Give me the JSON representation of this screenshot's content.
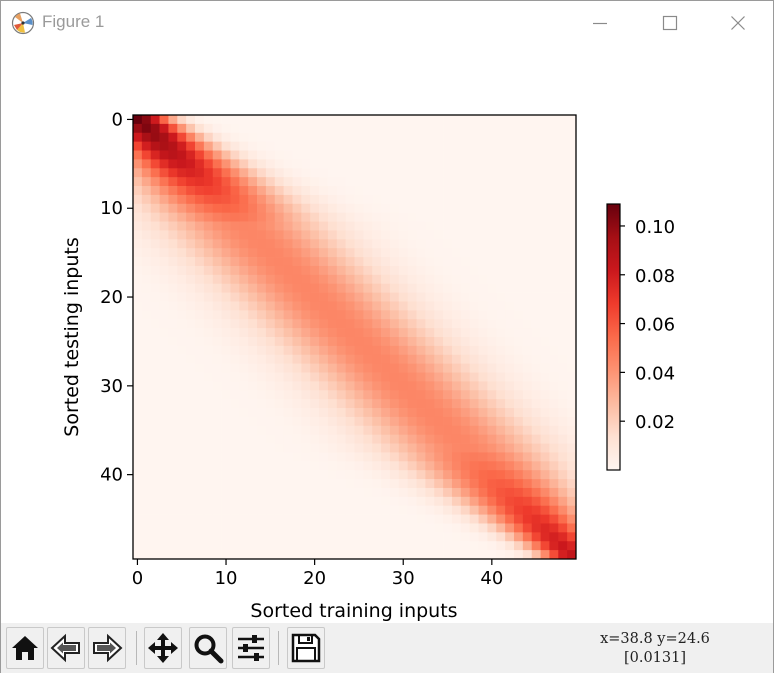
{
  "window": {
    "title": "Figure 1"
  },
  "chart_data": {
    "type": "heatmap",
    "matrix_size": 50,
    "xlabel": "Sorted training inputs",
    "ylabel": "Sorted testing inputs",
    "xticks": [
      0,
      10,
      20,
      30,
      40
    ],
    "yticks": [
      0,
      10,
      20,
      30,
      40
    ],
    "xlim": [
      -0.5,
      49.5
    ],
    "ylim": [
      49.5,
      -0.5
    ],
    "colormap": "Reds",
    "colorbar": {
      "min": 0.0,
      "max": 0.109,
      "ticks": [
        0.02,
        0.04,
        0.06,
        0.08,
        0.1
      ],
      "tick_labels": [
        "0.02",
        "0.04",
        "0.06",
        "0.08",
        "0.10"
      ]
    },
    "value_model": {
      "description": "Band-diagonal weights; each row is a smooth kernel centred on the matching training input",
      "band_width_center": 6.5,
      "band_width_edge": 2.6,
      "peak_corner": 0.109,
      "peak_corner_bottom": 0.085,
      "peak_center": 0.045
    }
  },
  "toolbar": {
    "buttons": [
      {
        "name": "home",
        "icon": "home-icon"
      },
      {
        "name": "back",
        "icon": "arrow-left-icon"
      },
      {
        "name": "forward",
        "icon": "arrow-right-icon"
      },
      {
        "name": "pan",
        "icon": "move-icon"
      },
      {
        "name": "zoom",
        "icon": "magnifier-icon"
      },
      {
        "name": "configure",
        "icon": "sliders-icon"
      },
      {
        "name": "save",
        "icon": "floppy-icon"
      }
    ],
    "coords_line1": "x=38.8  y=24.6",
    "coords_line2": "[0.0131]"
  }
}
